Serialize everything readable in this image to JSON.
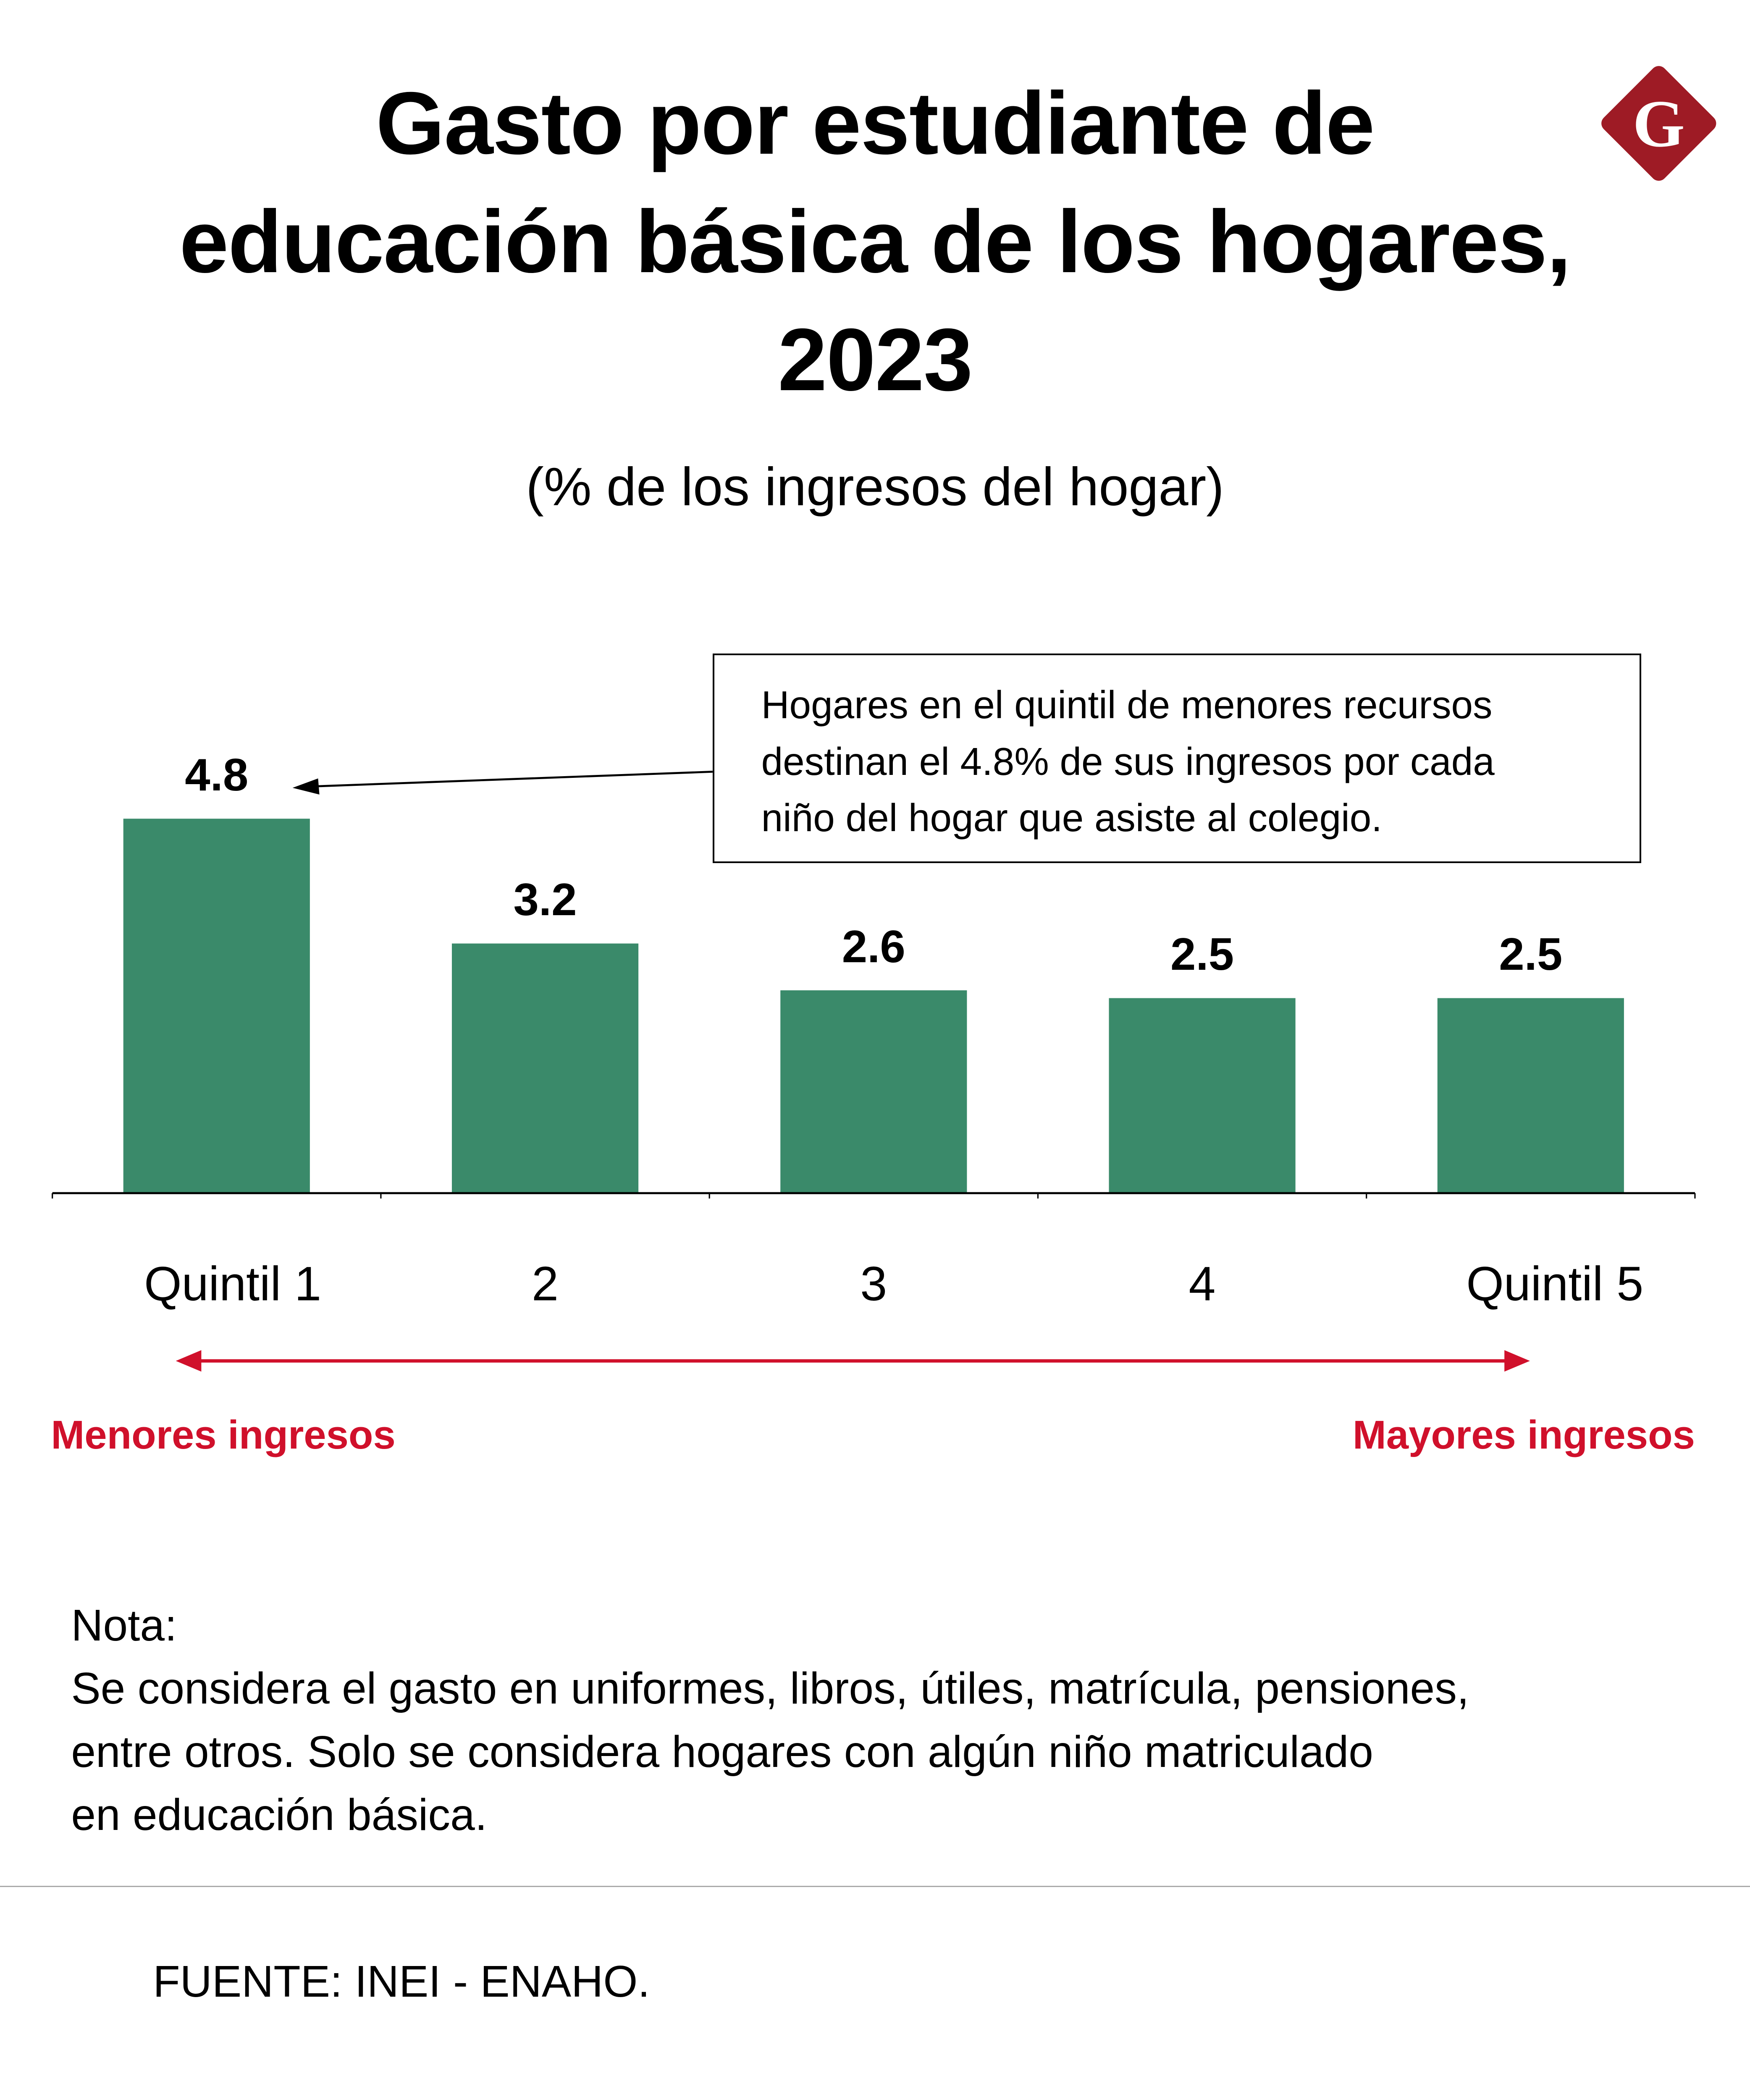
{
  "header": {
    "title_lines": [
      "Gasto por estudiante de",
      "educación básica de los hogares,",
      "2023"
    ],
    "subtitle": "(% de los ingresos del hogar)",
    "logo_letter": "G",
    "logo_color": "#9e1b25"
  },
  "chart_data": {
    "type": "bar",
    "title": "Gasto por estudiante de educación básica de los hogares, 2023",
    "subtitle": "(% de los ingresos del hogar)",
    "categories": [
      "Quintil 1",
      "2",
      "3",
      "4",
      "Quintil 5"
    ],
    "values": [
      4.8,
      3.2,
      2.6,
      2.5,
      2.5
    ],
    "value_labels": [
      "4.8",
      "3.2",
      "2.6",
      "2.5",
      "2.5"
    ],
    "ylim": [
      0,
      4.8
    ],
    "grid": false,
    "bar_color": "#3a8a6a",
    "annotation": {
      "lines": [
        "Hogares en el quintil de menores recursos",
        "destinan el 4.8% de sus ingresos por cada",
        "niño del hogar que asiste al colegio."
      ],
      "target_category": "Quintil 1"
    },
    "income_axis": {
      "left_label": "Menores ingresos",
      "right_label": "Mayores ingresos",
      "color": "#d0102b"
    }
  },
  "footer": {
    "note_lines": [
      "Nota:",
      "Se considera el gasto en uniformes, libros, útiles, matrícula, pensiones,",
      "entre otros. Solo se considera hogares con algún niño matriculado",
      "en educación básica."
    ],
    "source": "FUENTE: INEI - ENAHO."
  }
}
